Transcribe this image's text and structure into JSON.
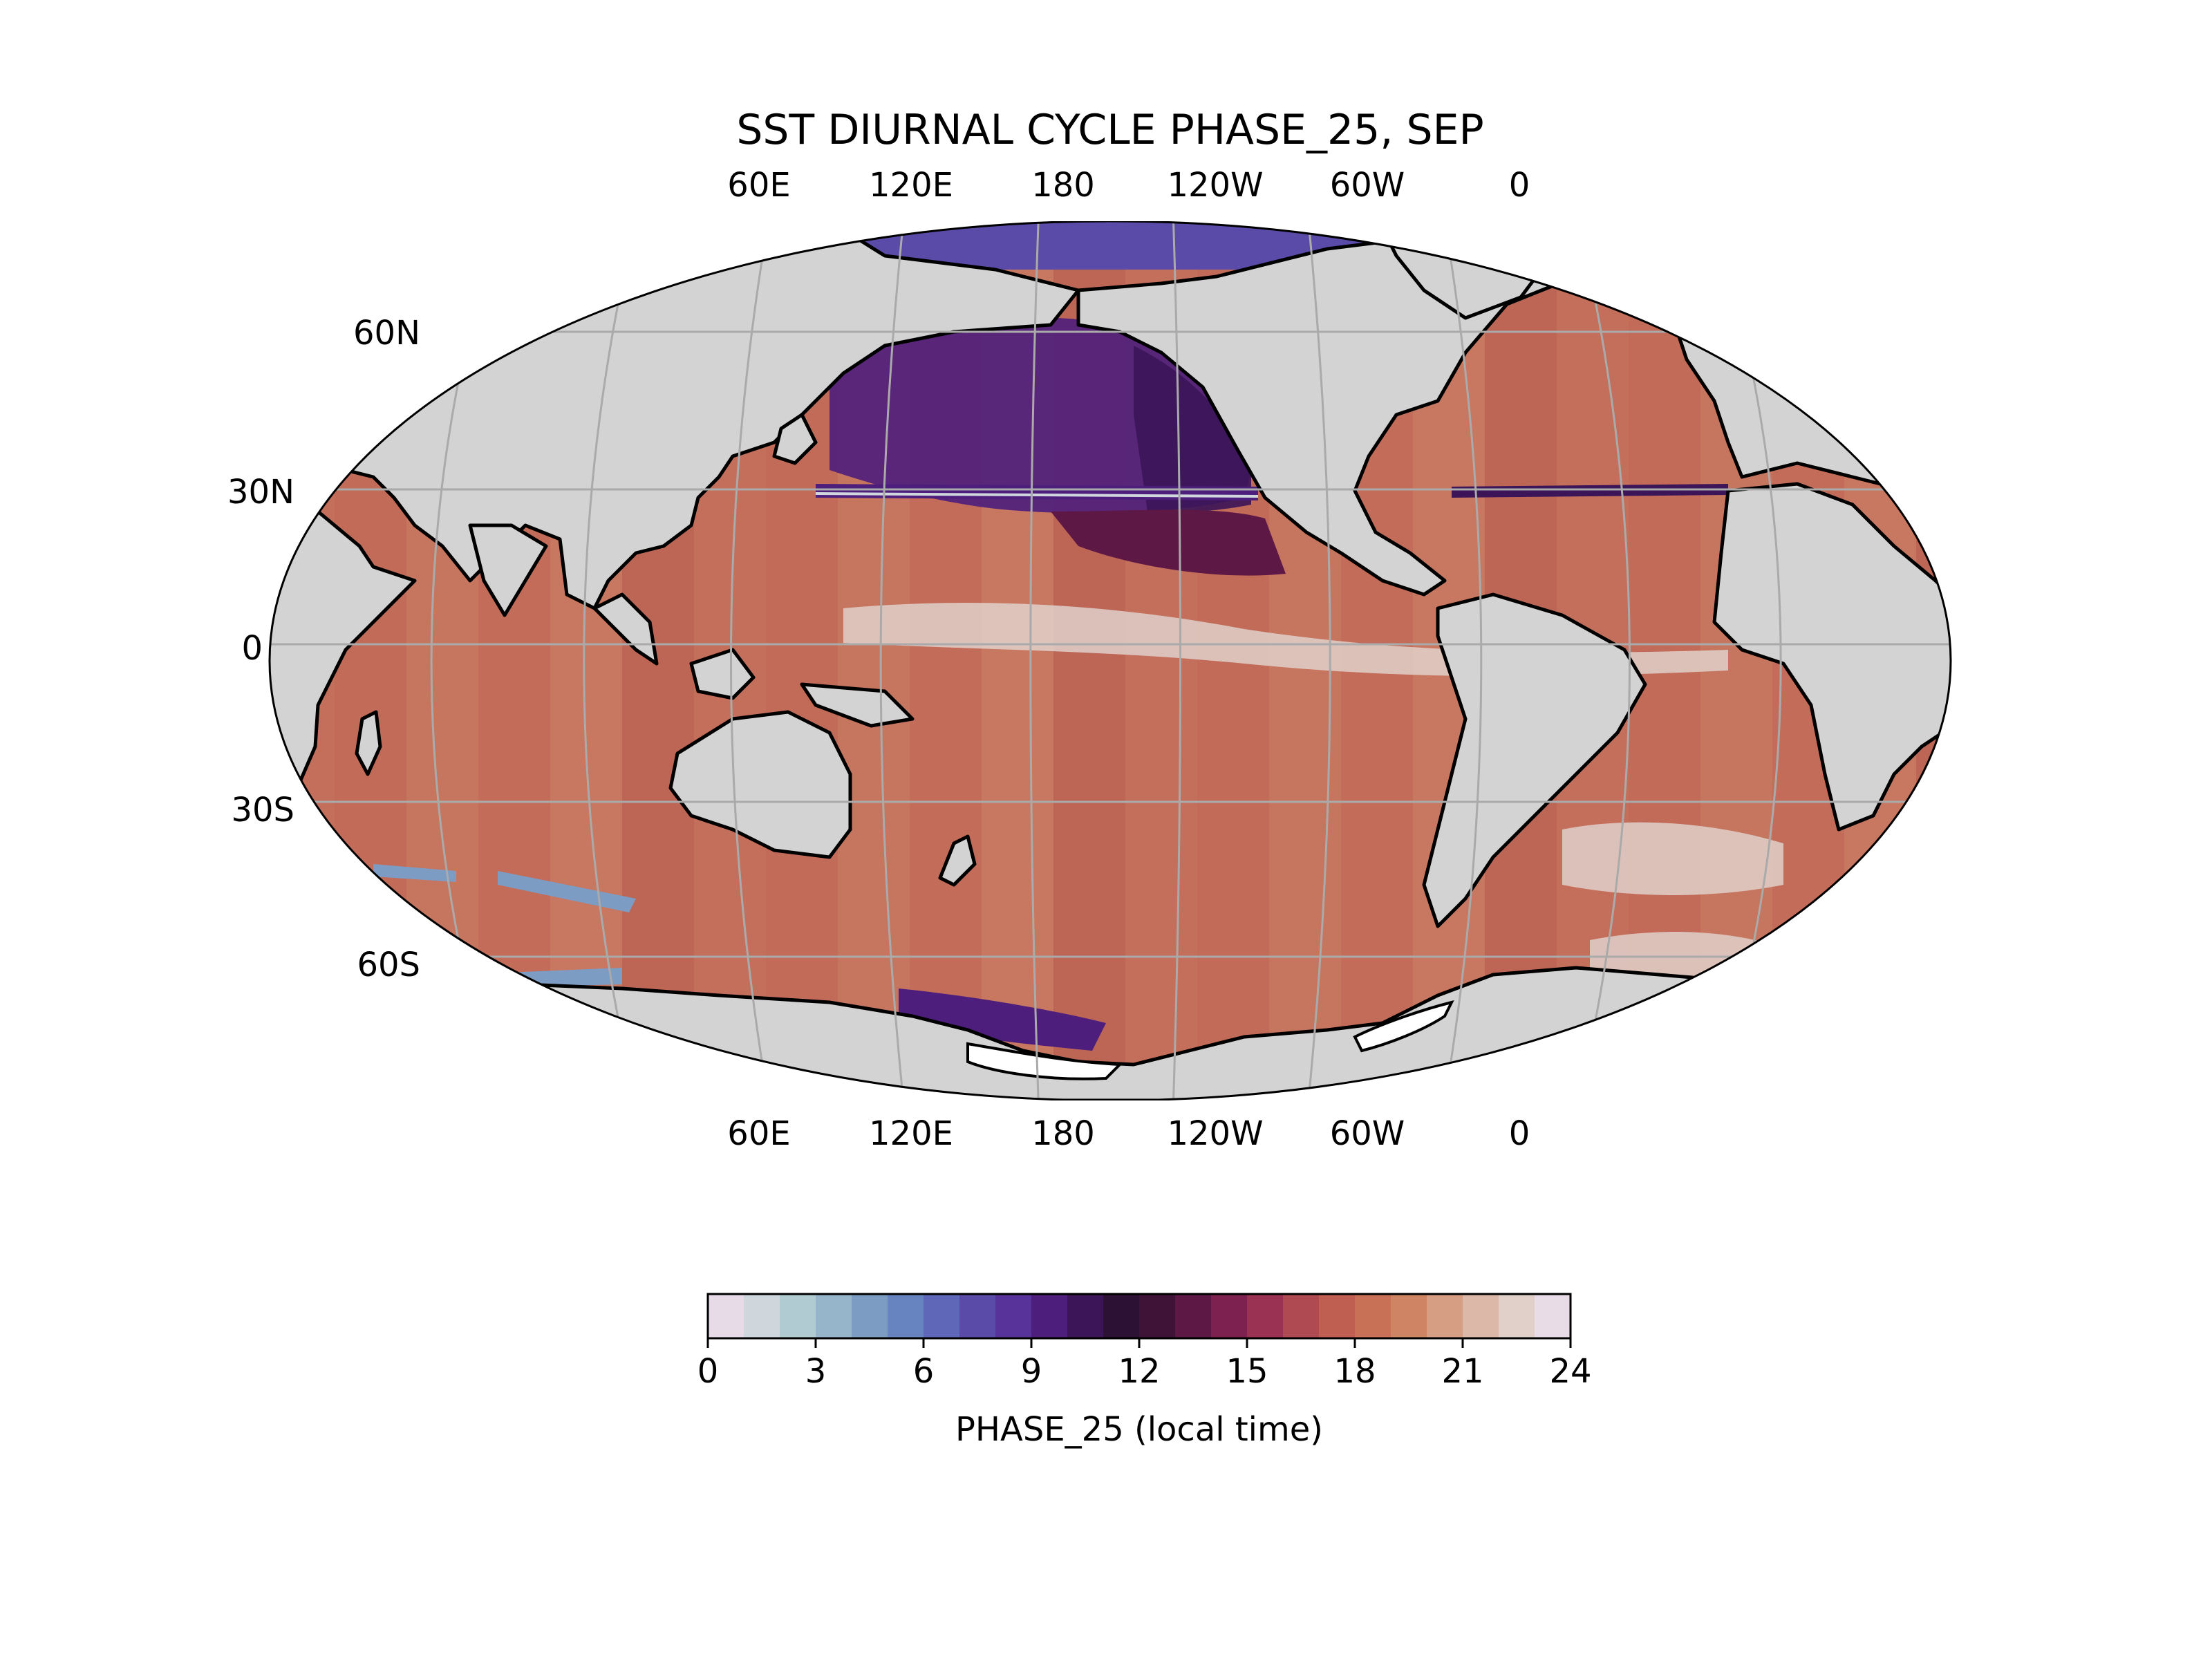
{
  "title": "SST DIURNAL CYCLE PHASE_25, SEP",
  "longitude_labels": [
    "60E",
    "120E",
    "180",
    "120W",
    "60W",
    "0"
  ],
  "latitude_labels": [
    "60N",
    "30N",
    "0",
    "30S",
    "60S"
  ],
  "colorbar": {
    "label": "PHASE_25 (local time)",
    "ticks": [
      "0",
      "3",
      "6",
      "9",
      "12",
      "15",
      "18",
      "21",
      "24"
    ],
    "colors": [
      "#e6dbe6",
      "#cfd6dc",
      "#b1cbd3",
      "#96b5cb",
      "#7d9cc4",
      "#6884c0",
      "#5e67b8",
      "#5b4ba8",
      "#58339a",
      "#4d1e7c",
      "#3b1558",
      "#2c1134",
      "#3f1237",
      "#5e1845",
      "#7d2250",
      "#9a3254",
      "#b04a52",
      "#bf5f52",
      "#c97157",
      "#cf8563",
      "#d69f84",
      "#dcb8a8",
      "#e1d0ca",
      "#e8dce6"
    ],
    "range": [
      0,
      24
    ]
  },
  "map": {
    "projection": "Robinson",
    "central_longitude": 210,
    "land_color": "#d3d3d3",
    "coastline_color": "#000000",
    "gridline_color": "#aaaaaa"
  }
}
